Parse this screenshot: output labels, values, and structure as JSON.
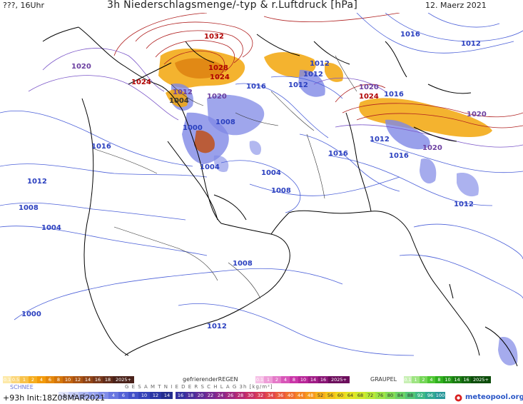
{
  "header": {
    "left": "???, 16Uhr",
    "title": "3h Niederschlagsmenge/-typ & r.Luftdruck [hPa]",
    "date": "12. Maerz 2021"
  },
  "map": {
    "isobars_blue": [
      {
        "label": "1016",
        "lx": 0,
        "ly": 0
      },
      {
        "label": "1012"
      },
      {
        "label": "1008"
      },
      {
        "label": "1004"
      },
      {
        "label": "1000"
      }
    ],
    "pressure_labels": [
      {
        "text": "1020",
        "color": "#6b3fa0"
      },
      {
        "text": "1032",
        "color": "#b00000"
      },
      {
        "text": "1028",
        "color": "#b00000"
      },
      {
        "text": "1024",
        "color": "#b00000"
      },
      {
        "text": "1024",
        "color": "#b00000"
      },
      {
        "text": "1012",
        "color": "#6b3fa0"
      },
      {
        "text": "1004",
        "color": "#333333"
      },
      {
        "text": "1020",
        "color": "#6b3fa0"
      },
      {
        "text": "1016",
        "color": "#2a3fbf"
      },
      {
        "text": "1008",
        "color": "#2a3fbf"
      },
      {
        "text": "1000",
        "color": "#2a3fbf"
      },
      {
        "text": "1016",
        "color": "#2a3fbf"
      },
      {
        "text": "1012",
        "color": "#2a3fbf"
      },
      {
        "text": "1008",
        "color": "#2a3fbf"
      },
      {
        "text": "1004",
        "color": "#2a3fbf"
      },
      {
        "text": "1004",
        "color": "#2a3fbf"
      },
      {
        "text": "1004",
        "color": "#2a3fbf"
      },
      {
        "text": "1008",
        "color": "#2a3fbf"
      },
      {
        "text": "1012",
        "color": "#2a3fbf"
      },
      {
        "text": "1016",
        "color": "#2a3fbf"
      },
      {
        "text": "1012",
        "color": "#2a3fbf"
      },
      {
        "text": "1008",
        "color": "#2a3fbf"
      },
      {
        "text": "1000",
        "color": "#2a3fbf"
      },
      {
        "text": "1012",
        "color": "#2a3fbf"
      },
      {
        "text": "1016",
        "color": "#2a3fbf"
      },
      {
        "text": "1012",
        "color": "#2a3fbf"
      },
      {
        "text": "1020",
        "color": "#6b3fa0"
      },
      {
        "text": "1024",
        "color": "#b00000"
      },
      {
        "text": "1016",
        "color": "#2a3fbf"
      },
      {
        "text": "1012",
        "color": "#2a3fbf"
      },
      {
        "text": "1020",
        "color": "#6b3fa0"
      },
      {
        "text": "1020",
        "color": "#6b3fa0"
      },
      {
        "text": "1012",
        "color": "#2a3fbf"
      },
      {
        "text": "1016",
        "color": "#2a3fbf"
      },
      {
        "text": "1012",
        "color": "#2a3fbf"
      }
    ]
  },
  "legend": {
    "rain_label": "",
    "rain_values": [
      "0.1",
      "0.5",
      "1",
      "2",
      "4",
      "6",
      "8",
      "10",
      "12",
      "14",
      "16",
      "18",
      "2025+"
    ],
    "freezing_label": "gefrierenderREGEN",
    "freezing_values": [
      "0.1",
      "1",
      "2",
      "4",
      "8",
      "10",
      "14",
      "16",
      "2025+"
    ],
    "graupel_label": "GRAUPEL",
    "graupel_values": [
      "0.1",
      "1",
      "2",
      "4",
      "8",
      "10",
      "14",
      "16",
      "2025+"
    ],
    "snow_label": "SCHNEE",
    "snow_values": [
      ".1",
      ".2",
      ".5",
      "1",
      "2",
      "4",
      "6",
      "8",
      "10",
      "12",
      "14"
    ],
    "total_label": "G E S A M T N I E D E R S C H L A G   3h   [kg/m²]",
    "total_values": [
      "16",
      "18",
      "20",
      "22",
      "24",
      "26",
      "28",
      "30",
      "32",
      "34",
      "36",
      "40",
      "44",
      "48",
      "52",
      "56",
      "60",
      "64",
      "68",
      "72",
      "76",
      "80",
      "84",
      "88",
      "92",
      "96",
      "100"
    ]
  },
  "footer": {
    "run_info": "+93h  Init:18Z08MAR2021",
    "brand_meteo": "meteo",
    "brand_pool": "pool",
    "brand_org": ".org"
  },
  "colors": {
    "isobar_blue": "#4a5fd8",
    "isobar_red": "#b02020",
    "rain": "#f2a60a",
    "snow": "#7f88e6",
    "coast": "#000000"
  }
}
